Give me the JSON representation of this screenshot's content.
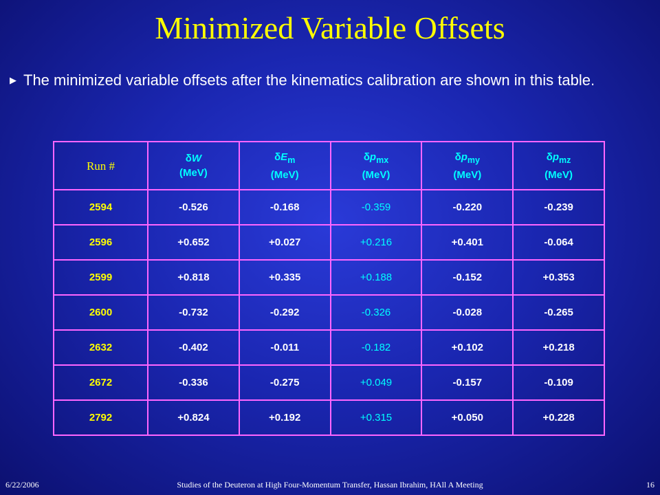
{
  "title": "Minimized Variable Offsets",
  "bullet": {
    "icon": "triangle-right-icon",
    "text": "The minimized variable offsets after the kinematics calibration are shown in this table."
  },
  "table": {
    "headers": {
      "run": "Run #",
      "w": {
        "sym": "δ",
        "var": "W",
        "sub": "",
        "unit": "(MeV)"
      },
      "em": {
        "sym": "δ",
        "var": "E",
        "sub": "m",
        "unit": "(MeV)"
      },
      "pmx": {
        "sym": "δ",
        "var": "p",
        "sub": "mx",
        "unit": "(MeV)"
      },
      "pmy": {
        "sym": "δ",
        "var": "p",
        "sub": "my",
        "unit": "(MeV)"
      },
      "pmz": {
        "sym": "δ",
        "var": "p",
        "sub": "mz",
        "unit": "(MeV)"
      }
    },
    "rows": [
      {
        "run": "2594",
        "w": "-0.526",
        "em": "-0.168",
        "pmx": "-0.359",
        "pmy": "-0.220",
        "pmz": "-0.239"
      },
      {
        "run": "2596",
        "w": "+0.652",
        "em": "+0.027",
        "pmx": "+0.216",
        "pmy": "+0.401",
        "pmz": "-0.064"
      },
      {
        "run": "2599",
        "w": "+0.818",
        "em": "+0.335",
        "pmx": "+0.188",
        "pmy": "-0.152",
        "pmz": "+0.353"
      },
      {
        "run": "2600",
        "w": "-0.732",
        "em": "-0.292",
        "pmx": "-0.326",
        "pmy": "-0.028",
        "pmz": "-0.265"
      },
      {
        "run": "2632",
        "w": "-0.402",
        "em": "-0.011",
        "pmx": "-0.182",
        "pmy": "+0.102",
        "pmz": "+0.218"
      },
      {
        "run": "2672",
        "w": "-0.336",
        "em": "-0.275",
        "pmx": "+0.049",
        "pmy": "-0.157",
        "pmz": "-0.109"
      },
      {
        "run": "2792",
        "w": "+0.824",
        "em": "+0.192",
        "pmx": "+0.315",
        "pmy": "+0.050",
        "pmz": "+0.228"
      }
    ]
  },
  "footer": {
    "date": "6/22/2006",
    "center": "Studies of the Deuteron at High Four-Momentum Transfer, Hassan Ibrahim, HAll A Meeting",
    "page": "16"
  },
  "colors": {
    "title": "#ffff00",
    "run": "#ffff00",
    "header": "#00ffff",
    "pmx": "#00ffff",
    "values": "#ffffff",
    "grid": "#ff66ff",
    "background": "#1a26b0"
  }
}
